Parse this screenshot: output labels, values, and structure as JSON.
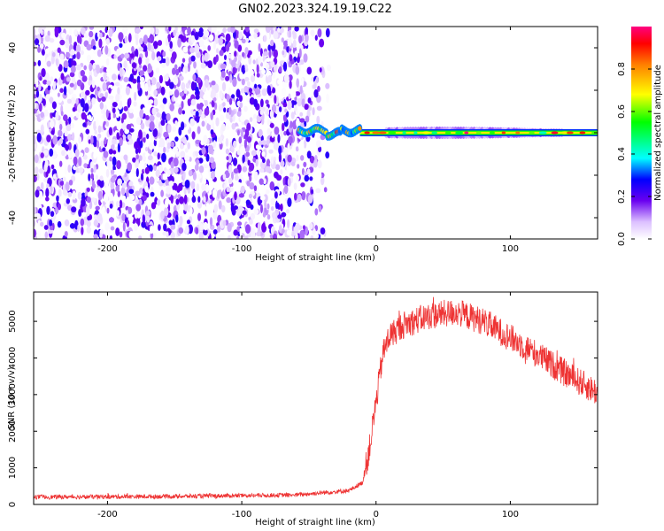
{
  "title": "GN02.2023.324.19.19.C22",
  "chart_data": [
    {
      "type": "heatmap",
      "xlabel": "Height of straight line (km)",
      "ylabel": "Frequency (Hz)",
      "xlim": [
        -255,
        165
      ],
      "ylim": [
        -50,
        50
      ],
      "xticks": [
        -200,
        -100,
        0,
        100
      ],
      "yticks": [
        -40,
        -20,
        0,
        20,
        40
      ],
      "description_of_content": [
        {
          "region": "noise",
          "x_range": [
            -255,
            -35
          ],
          "y_range": [
            -50,
            50
          ],
          "amplitude": [
            0.0,
            0.25
          ]
        },
        {
          "region": "onset",
          "x_range": [
            -57,
            -12
          ],
          "y_center": 1,
          "amplitude": [
            0.3,
            0.9
          ]
        },
        {
          "region": "tone",
          "x_range": [
            -12,
            165
          ],
          "y_center": 0,
          "amplitude": [
            0.4,
            1.0
          ]
        }
      ],
      "colorbar": {
        "label": "Normalized spectral amplitude",
        "range": [
          0,
          1
        ],
        "ticks": [
          0.0,
          0.2,
          0.4,
          0.6,
          0.8
        ]
      },
      "grid": false
    },
    {
      "type": "line",
      "xlabel": "Height of straight line (km)",
      "ylabel": "SNR (10 * v/v)",
      "xlim": [
        -255,
        165
      ],
      "ylim": [
        0,
        5800
      ],
      "xticks": [
        -200,
        -100,
        0,
        100
      ],
      "yticks": [
        0,
        1000,
        2000,
        3000,
        4000,
        5000
      ],
      "color": "#ee3333",
      "envelope": {
        "x": [
          -255,
          -150,
          -60,
          -20,
          -10,
          -5,
          0,
          5,
          10,
          20,
          40,
          60,
          80,
          100,
          120,
          140,
          165
        ],
        "y": [
          200,
          220,
          260,
          380,
          600,
          1500,
          2800,
          4100,
          4600,
          4900,
          5150,
          5250,
          5000,
          4550,
          4100,
          3600,
          3050
        ]
      },
      "grid": false
    }
  ]
}
